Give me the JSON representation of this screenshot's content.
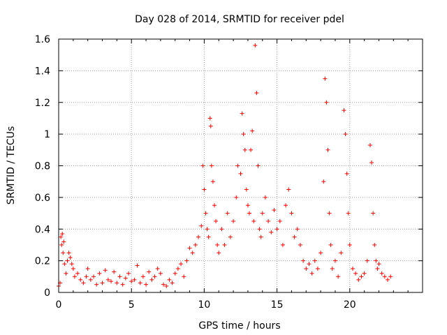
{
  "chart_data": {
    "type": "scatter",
    "title": "Day 028 of 2014, SRMTID for receiver pdel",
    "xlabel": "GPS time / hours",
    "ylabel": "SRMTID / TECUs",
    "xlim": [
      0,
      25
    ],
    "ylim": [
      0,
      1.6
    ],
    "xticks": [
      0,
      5,
      10,
      15,
      20
    ],
    "yticks": [
      0,
      0.2,
      0.4,
      0.6,
      0.8,
      1,
      1.2,
      1.4,
      1.6
    ],
    "xtick_labels": [
      "0",
      "5",
      "10",
      "15",
      "20"
    ],
    "ytick_labels": [
      "0",
      "0.2",
      "0.4",
      "0.6",
      "0.8",
      "1",
      "1.2",
      "1.4",
      "1.6"
    ],
    "grid": true,
    "marker": "+",
    "color": "#ff0000",
    "series": [
      {
        "name": "SRMTID",
        "points": [
          [
            0.0,
            0.04
          ],
          [
            0.1,
            0.06
          ],
          [
            0.15,
            0.35
          ],
          [
            0.2,
            0.3
          ],
          [
            0.25,
            0.37
          ],
          [
            0.3,
            0.25
          ],
          [
            0.35,
            0.32
          ],
          [
            0.4,
            0.18
          ],
          [
            0.5,
            0.12
          ],
          [
            0.6,
            0.2
          ],
          [
            0.7,
            0.25
          ],
          [
            0.8,
            0.22
          ],
          [
            0.9,
            0.18
          ],
          [
            1.0,
            0.15
          ],
          [
            1.1,
            0.1
          ],
          [
            1.3,
            0.12
          ],
          [
            1.5,
            0.08
          ],
          [
            1.7,
            0.06
          ],
          [
            1.9,
            0.1
          ],
          [
            2.0,
            0.15
          ],
          [
            2.2,
            0.08
          ],
          [
            2.4,
            0.1
          ],
          [
            2.6,
            0.05
          ],
          [
            2.8,
            0.12
          ],
          [
            3.0,
            0.06
          ],
          [
            3.2,
            0.14
          ],
          [
            3.4,
            0.08
          ],
          [
            3.6,
            0.07
          ],
          [
            3.8,
            0.13
          ],
          [
            4.0,
            0.06
          ],
          [
            4.2,
            0.1
          ],
          [
            4.4,
            0.05
          ],
          [
            4.6,
            0.09
          ],
          [
            4.8,
            0.12
          ],
          [
            5.0,
            0.07
          ],
          [
            5.2,
            0.08
          ],
          [
            5.4,
            0.17
          ],
          [
            5.6,
            0.06
          ],
          [
            5.8,
            0.1
          ],
          [
            6.0,
            0.05
          ],
          [
            6.2,
            0.13
          ],
          [
            6.4,
            0.08
          ],
          [
            6.6,
            0.1
          ],
          [
            6.8,
            0.15
          ],
          [
            7.0,
            0.12
          ],
          [
            7.2,
            0.05
          ],
          [
            7.4,
            0.04
          ],
          [
            7.6,
            0.08
          ],
          [
            7.8,
            0.06
          ],
          [
            8.0,
            0.12
          ],
          [
            8.2,
            0.15
          ],
          [
            8.4,
            0.18
          ],
          [
            8.6,
            0.1
          ],
          [
            8.8,
            0.2
          ],
          [
            9.0,
            0.28
          ],
          [
            9.2,
            0.25
          ],
          [
            9.4,
            0.3
          ],
          [
            9.6,
            0.35
          ],
          [
            9.8,
            0.42
          ],
          [
            9.9,
            0.8
          ],
          [
            10.0,
            0.65
          ],
          [
            10.1,
            0.5
          ],
          [
            10.2,
            0.4
          ],
          [
            10.3,
            0.35
          ],
          [
            10.4,
            1.1
          ],
          [
            10.45,
            1.05
          ],
          [
            10.5,
            0.8
          ],
          [
            10.6,
            0.7
          ],
          [
            10.7,
            0.55
          ],
          [
            10.8,
            0.45
          ],
          [
            10.9,
            0.3
          ],
          [
            11.0,
            0.25
          ],
          [
            11.2,
            0.4
          ],
          [
            11.4,
            0.3
          ],
          [
            11.6,
            0.5
          ],
          [
            11.8,
            0.35
          ],
          [
            12.0,
            0.45
          ],
          [
            12.2,
            0.6
          ],
          [
            12.3,
            0.8
          ],
          [
            12.5,
            0.75
          ],
          [
            12.6,
            1.13
          ],
          [
            12.7,
            1.0
          ],
          [
            12.8,
            0.9
          ],
          [
            12.9,
            0.65
          ],
          [
            13.0,
            0.55
          ],
          [
            13.1,
            0.5
          ],
          [
            13.2,
            0.9
          ],
          [
            13.3,
            1.02
          ],
          [
            13.4,
            0.45
          ],
          [
            13.5,
            1.56
          ],
          [
            13.6,
            1.26
          ],
          [
            13.7,
            0.8
          ],
          [
            13.8,
            0.4
          ],
          [
            13.9,
            0.35
          ],
          [
            14.0,
            0.5
          ],
          [
            14.2,
            0.6
          ],
          [
            14.4,
            0.45
          ],
          [
            14.6,
            0.38
          ],
          [
            14.8,
            0.52
          ],
          [
            15.0,
            0.4
          ],
          [
            15.2,
            0.45
          ],
          [
            15.4,
            0.3
          ],
          [
            15.6,
            0.55
          ],
          [
            15.8,
            0.65
          ],
          [
            16.0,
            0.5
          ],
          [
            16.2,
            0.35
          ],
          [
            16.4,
            0.4
          ],
          [
            16.6,
            0.3
          ],
          [
            16.8,
            0.2
          ],
          [
            17.0,
            0.15
          ],
          [
            17.2,
            0.18
          ],
          [
            17.4,
            0.12
          ],
          [
            17.6,
            0.2
          ],
          [
            17.8,
            0.15
          ],
          [
            18.0,
            0.25
          ],
          [
            18.2,
            0.7
          ],
          [
            18.3,
            1.35
          ],
          [
            18.4,
            1.2
          ],
          [
            18.5,
            0.9
          ],
          [
            18.6,
            0.5
          ],
          [
            18.7,
            0.3
          ],
          [
            18.8,
            0.15
          ],
          [
            19.0,
            0.2
          ],
          [
            19.2,
            0.1
          ],
          [
            19.4,
            0.25
          ],
          [
            19.6,
            1.15
          ],
          [
            19.7,
            1.0
          ],
          [
            19.8,
            0.75
          ],
          [
            19.9,
            0.5
          ],
          [
            20.0,
            0.3
          ],
          [
            20.2,
            0.15
          ],
          [
            20.4,
            0.12
          ],
          [
            20.6,
            0.08
          ],
          [
            20.8,
            0.1
          ],
          [
            21.0,
            0.12
          ],
          [
            21.2,
            0.2
          ],
          [
            21.4,
            0.93
          ],
          [
            21.5,
            0.82
          ],
          [
            21.6,
            0.5
          ],
          [
            21.7,
            0.3
          ],
          [
            21.8,
            0.2
          ],
          [
            21.9,
            0.15
          ],
          [
            22.0,
            0.18
          ],
          [
            22.2,
            0.12
          ],
          [
            22.4,
            0.1
          ],
          [
            22.6,
            0.08
          ],
          [
            22.8,
            0.1
          ]
        ]
      }
    ]
  }
}
